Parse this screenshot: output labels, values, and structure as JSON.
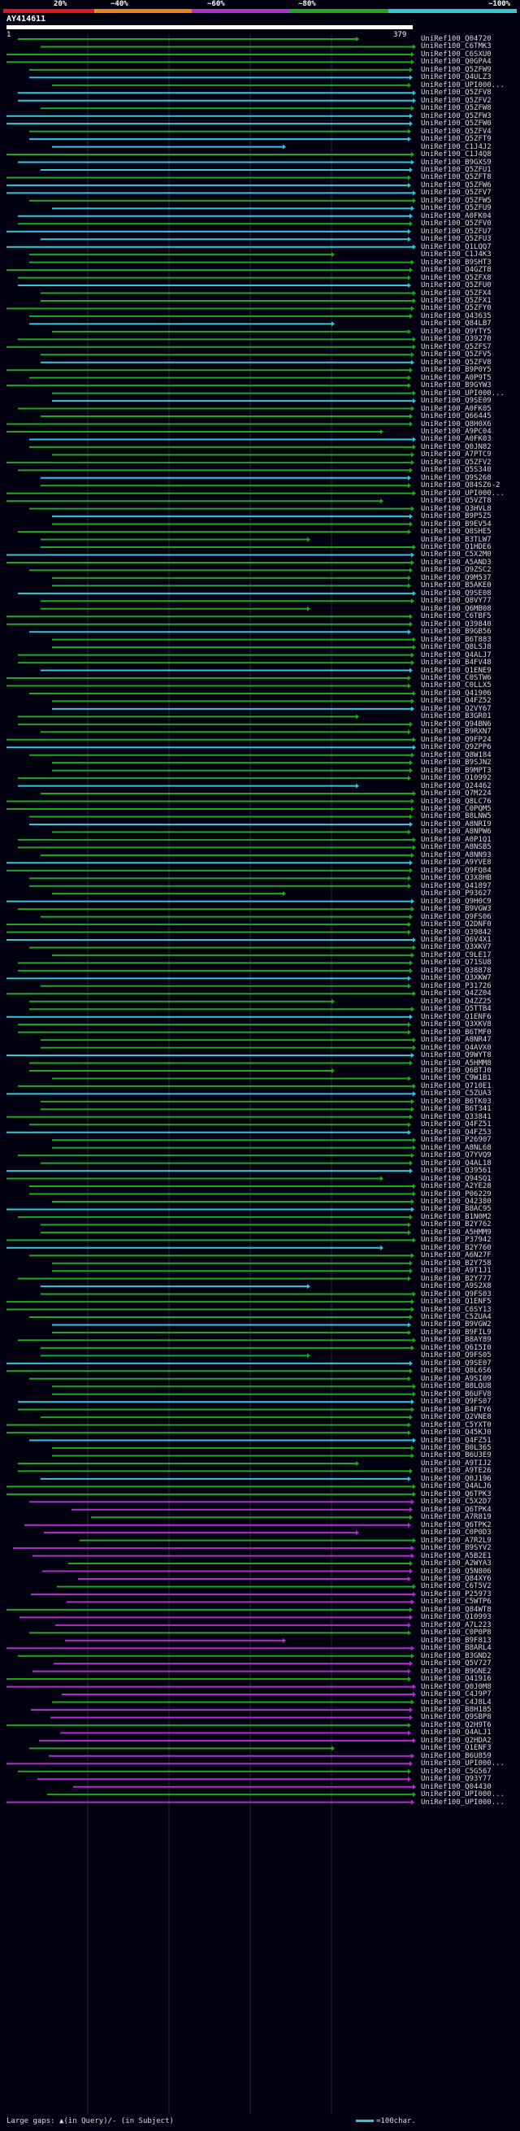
{
  "query": {
    "name": "AY414611",
    "start": "1",
    "end": "379",
    "length": 379
  },
  "scale": {
    "labels": [
      "20%",
      "~40%",
      "~60%",
      "~80%",
      "~100%"
    ],
    "colors": [
      "#e0161e",
      "#e88418",
      "#b030c8",
      "#22a81e",
      "#32c8d8"
    ]
  },
  "footer": {
    "legend": "Large gaps: ▲(in Query)/- (in Subject)",
    "scale_text": "=100char."
  },
  "hits": [
    "UniRef100_Q04720",
    "UniRef100_C6TMK3",
    "UniRef100_C6SXU0",
    "UniRef100_Q0GPA4",
    "UniRef100_Q5ZFW9",
    "UniRef100_Q4ULZ3",
    "UniRef100_UPI000...",
    "UniRef100_Q5ZFV8",
    "UniRef100_Q5ZFV2",
    "UniRef100_Q5ZFW8",
    "UniRef100_Q5ZFW3",
    "UniRef100_Q5ZFW0",
    "UniRef100_Q5ZFV4",
    "UniRef100_Q5ZFT9",
    "UniRef100_C1J4J2",
    "UniRef100_C1J4Q8",
    "UniRef100_B9GXS9",
    "UniRef100_Q5ZFU1",
    "UniRef100_Q5ZFT8",
    "UniRef100_Q5ZFW6",
    "UniRef100_Q5ZFV7",
    "UniRef100_Q5ZFW5",
    "UniRef100_Q5ZFU9",
    "UniRef100_A0FK04",
    "UniRef100_Q5ZFV0",
    "UniRef100_Q5ZFU7",
    "UniRef100_Q5ZFU3",
    "UniRef100_Q1LQQ7",
    "UniRef100_C1J4K3",
    "UniRef100_B9SHT3",
    "UniRef100_Q4GZT8",
    "UniRef100_Q5ZFX8",
    "UniRef100_Q5ZFU0",
    "UniRef100_Q5ZFX4",
    "UniRef100_Q5ZFX1",
    "UniRef100_Q5ZFY0",
    "UniRef100_Q43635",
    "UniRef100_Q84LB7",
    "UniRef100_Q9YTY5",
    "UniRef100_Q39270",
    "UniRef100_Q5ZFS7",
    "UniRef100_Q5ZFV5",
    "UniRef100_Q5ZFV8",
    "UniRef100_B9P0Y5",
    "UniRef100_A0P9T5",
    "UniRef100_B9GYW3",
    "UniRef100_UPI000...",
    "UniRef100_Q9SE09",
    "UniRef100_A0FK05",
    "UniRef100_Q66445",
    "UniRef100_Q8H0X6",
    "UniRef100_A9PC04",
    "UniRef100_A0FK03",
    "UniRef100_Q0JN82",
    "UniRef100_A7PTC9",
    "UniRef100_Q5ZFV2",
    "UniRef100_Q5S340",
    "UniRef100_Q9S268",
    "UniRef100_Q84SZ6-2",
    "UniRef100_UPI000...",
    "UniRef100_Q5VZT8",
    "UniRef100_Q3HVL8",
    "UniRef100_B9P5Z5",
    "UniRef100_B9EV54",
    "UniRef100_Q8SHE5",
    "UniRef100_B3TLW7",
    "UniRef100_Q1HDE6",
    "UniRef100_C5X2M0",
    "UniRef100_A5AND3",
    "UniRef100_Q9ZSC2",
    "UniRef100_Q9M537",
    "UniRef100_B5AKE0",
    "UniRef100_Q9SE08",
    "UniRef100_Q8VY77",
    "UniRef100_Q6MB08",
    "UniRef100_C6TBF5",
    "UniRef100_Q39840",
    "UniRef100_B9GB56",
    "UniRef100_B6T883",
    "UniRef100_Q8LSJ8",
    "UniRef100_Q4ALJ7",
    "UniRef100_B4FV48",
    "UniRef100_Q1ENE9",
    "UniRef100_C0STW6",
    "UniRef100_C0LLX5",
    "UniRef100_Q41906",
    "UniRef100_Q4FZ52",
    "UniRef100_Q2VY67",
    "UniRef100_B3GR01",
    "UniRef100_Q94BN6",
    "UniRef100_B9RXN7",
    "UniRef100_Q9FP24",
    "UniRef100_Q9ZPP6",
    "UniRef100_Q8W184",
    "UniRef100_B9SJN2",
    "UniRef100_B9MPT3",
    "UniRef100_Q10992",
    "UniRef100_Q24462",
    "UniRef100_Q7M224",
    "UniRef100_Q8LC76",
    "UniRef100_C0PQM5",
    "UniRef100_B8LNW5",
    "UniRef100_A8NRI9",
    "UniRef100_A8NPW6",
    "UniRef100_A0P1Q1",
    "UniRef100_A8NSB5",
    "UniRef100_A8NN93",
    "UniRef100_A9YVE8",
    "UniRef100_Q9FQ84",
    "UniRef100_Q3X8HB",
    "UniRef100_Q41897",
    "UniRef100_P93627",
    "UniRef100_Q9H0C9",
    "UniRef100_B9VGW3",
    "UniRef100_Q9FS06",
    "UniRef100_Q2DNF0",
    "UniRef100_Q39842",
    "UniRef100_Q6V4X1",
    "UniRef100_Q3XKV7",
    "UniRef100_C9LE17",
    "UniRef100_Q71SU8",
    "UniRef100_Q38878",
    "UniRef100_Q3XKW7",
    "UniRef100_P31726",
    "UniRef100_Q4ZZ04",
    "UniRef100_Q4ZZ25",
    "UniRef100_Q5TTB4",
    "UniRef100_Q1ENF6",
    "UniRef100_Q3XKV8",
    "UniRef100_B6TMF0",
    "UniRef100_A8NR47",
    "UniRef100_Q4AVX0",
    "UniRef100_Q9WYT8",
    "UniRef100_A5HMM8",
    "UniRef100_Q6BTJ0",
    "UniRef100_C9W1B1",
    "UniRef100_Q710E1",
    "UniRef100_C5ZUA3",
    "UniRef100_B6TK03",
    "UniRef100_B6T341",
    "UniRef100_Q33841",
    "UniRef100_Q4FZ51",
    "UniRef100_Q4FZ53",
    "UniRef100_P26907",
    "UniRef100_A8NL68",
    "UniRef100_Q7YVQ9",
    "UniRef100_Q4AL18",
    "UniRef100_Q39561",
    "UniRef100_Q94SQ1",
    "UniRef100_A2YE28",
    "UniRef100_P06229",
    "UniRef100_Q42380",
    "UniRef100_B8AC95",
    "UniRef100_B1N0M2",
    "UniRef100_B2Y762",
    "UniRef100_A5HMM9",
    "UniRef100_P37942",
    "UniRef100_B2Y760",
    "UniRef100_A6N27F",
    "UniRef100_B2Y758",
    "UniRef100_A9T1J1",
    "UniRef100_B2Y777",
    "UniRef100_A9S2X8",
    "UniRef100_Q9FS03",
    "UniRef100_Q1ENF5",
    "UniRef100_C6SY13",
    "UniRef100_C5ZUA4",
    "UniRef100_B9VGW2",
    "UniRef100_B9FIL9",
    "UniRef100_B8AY89",
    "UniRef100_Q6I5I0",
    "UniRef100_Q9FS05",
    "UniRef100_Q9SE07",
    "UniRef100_Q8L6S6",
    "UniRef100_A9SI09",
    "UniRef100_B8LQU8",
    "UniRef100_B6UFV8",
    "UniRef100_Q9FS07",
    "UniRef100_B4FTY6",
    "UniRef100_Q2VNE8",
    "UniRef100_C5YXT0",
    "UniRef100_Q45KJ0",
    "UniRef100_Q4FZ51",
    "UniRef100_B0L365",
    "UniRef100_B6U3E9",
    "UniRef100_A9TIJ2",
    "UniRef100_A9TE26",
    "UniRef100_Q0J196",
    "UniRef100_Q4ALJ6",
    "UniRef100_Q6TPK3",
    "UniRef100_C5X2D7",
    "UniRef100_Q6TPK4",
    "UniRef100_A7R819",
    "UniRef100_Q6TPK2",
    "UniRef100_C0P0D3",
    "UniRef100_A7R2L9",
    "UniRef100_B9SYV2",
    "UniRef100_A5B2E1",
    "UniRef100_A2WYA3",
    "UniRef100_Q5N806",
    "UniRef100_Q84XY6",
    "UniRef100_C6T5V2",
    "UniRef100_P25973",
    "UniRef100_C5WTP6",
    "UniRef100_Q84WT8",
    "UniRef100_Q10993",
    "UniRef100_A7L223",
    "UniRef100_C0P0P8",
    "UniRef100_B9F813",
    "UniRef100_B8ARL4",
    "UniRef100_B3GND2",
    "UniRef100_Q5V727",
    "UniRef100_B9GNE2",
    "UniRef100_Q41916",
    "UniRef100_Q0J0M8",
    "UniRef100_C4J9P7",
    "UniRef100_C4J8L4",
    "UniRef100_B8H185",
    "UniRef100_Q9SBP8",
    "UniRef100_Q2H9T6",
    "UniRef100_Q4ALJ1",
    "UniRef100_Q2HDA2",
    "UniRef100_Q1ENF3",
    "UniRef100_B6U859",
    "UniRef100_UPI000...",
    "UniRef100_C5G567",
    "UniRef100_Q93Y77",
    "UniRef100_Q04430",
    "UniRef100_UPI000...",
    "UniRef100_UPI000..."
  ]
}
